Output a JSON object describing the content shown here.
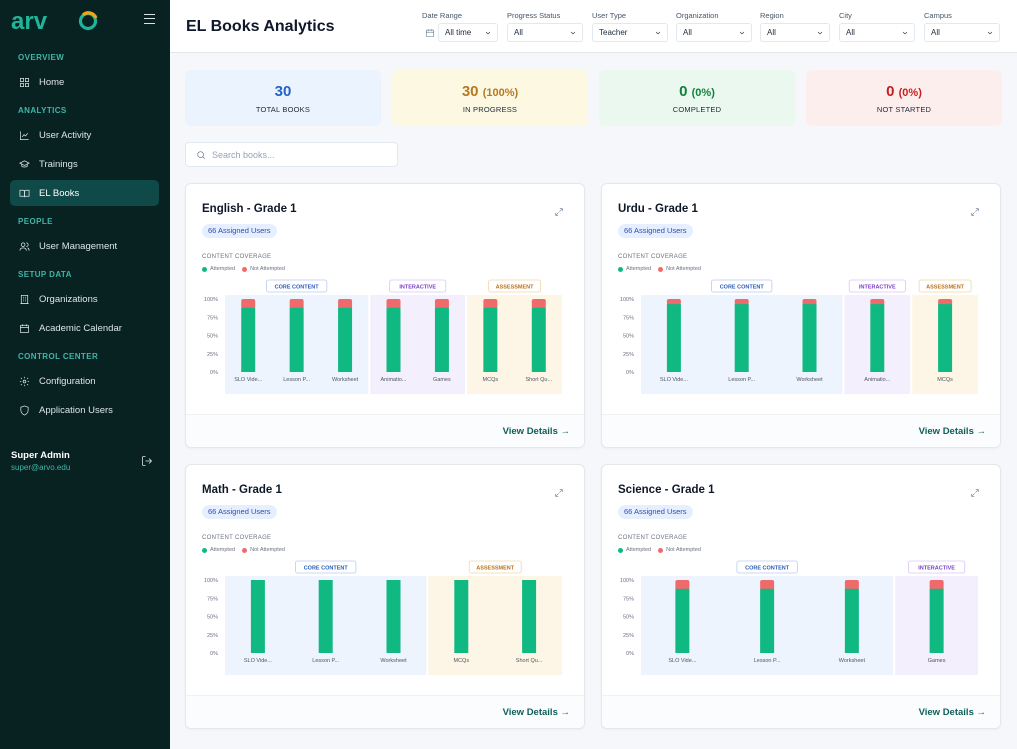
{
  "app": {
    "logo_text": "arvo",
    "brand_colors": {
      "teal": "#1fb59a",
      "orange": "#f4a31a"
    }
  },
  "sidebar": {
    "sections": [
      {
        "title": "OVERVIEW",
        "items": [
          {
            "label": "Home",
            "icon": "grid-icon",
            "active": false
          }
        ]
      },
      {
        "title": "ANALYTICS",
        "items": [
          {
            "label": "User Activity",
            "icon": "activity-icon",
            "active": false
          },
          {
            "label": "Trainings",
            "icon": "graduation-cap-icon",
            "active": false
          },
          {
            "label": "EL Books",
            "icon": "book-open-icon",
            "active": true
          }
        ]
      },
      {
        "title": "PEOPLE",
        "items": [
          {
            "label": "User Management",
            "icon": "users-icon",
            "active": false
          }
        ]
      },
      {
        "title": "SETUP DATA",
        "items": [
          {
            "label": "Organizations",
            "icon": "building-icon",
            "active": false
          },
          {
            "label": "Academic Calendar",
            "icon": "calendar-icon",
            "active": false
          }
        ]
      },
      {
        "title": "CONTROL CENTER",
        "items": [
          {
            "label": "Configuration",
            "icon": "gear-icon",
            "active": false
          },
          {
            "label": "Application Users",
            "icon": "shield-icon",
            "active": false
          }
        ]
      }
    ],
    "user": {
      "name": "Super Admin",
      "email": "super@arvo.edu"
    }
  },
  "header": {
    "title": "EL Books Analytics",
    "filters": [
      {
        "label": "Date Range",
        "value": "All time"
      },
      {
        "label": "Progress Status",
        "value": "All"
      },
      {
        "label": "User Type",
        "value": "Teacher"
      },
      {
        "label": "Organization",
        "value": "All"
      },
      {
        "label": "Region",
        "value": "All"
      },
      {
        "label": "City",
        "value": "All"
      },
      {
        "label": "Campus",
        "value": "All"
      }
    ]
  },
  "stats": [
    {
      "value": "30",
      "pct": "",
      "label": "TOTAL BOOKS",
      "bg": "#eaf3fe",
      "color": "#2463c4"
    },
    {
      "value": "30",
      "pct": "(100%)",
      "label": "IN PROGRESS",
      "bg": "#fdf8e2",
      "color": "#b7791f"
    },
    {
      "value": "0",
      "pct": "(0%)",
      "label": "COMPLETED",
      "bg": "#eaf8ef",
      "color": "#15803d"
    },
    {
      "value": "0",
      "pct": "(0%)",
      "label": "NOT STARTED",
      "bg": "#fdeeee",
      "color": "#c81e1e"
    }
  ],
  "search": {
    "placeholder": "Search books..."
  },
  "colors": {
    "attempted": "#10b981",
    "not_attempted": "#ef6b6b"
  },
  "cards_common": {
    "coverage_label": "CONTENT COVERAGE",
    "legend_attempted": "Attempted",
    "legend_not_attempted": "Not Attempted",
    "view_details": "View Details →",
    "y_ticks": [
      "100%",
      "75%",
      "50%",
      "25%",
      "0%"
    ]
  },
  "books": [
    {
      "title": "English - Grade 1",
      "assigned": "66 Assigned Users",
      "groups": [
        {
          "name": "CORE CONTENT",
          "bg": "#eef4fd",
          "tag_color": "#2b5bb8",
          "tag_border": "#b9cdf2",
          "items": [
            {
              "label": "SLO Vide...",
              "attempted": 88
            },
            {
              "label": "Lesson P...",
              "attempted": 88
            },
            {
              "label": "Worksheet",
              "attempted": 88
            }
          ]
        },
        {
          "name": "INTERACTIVE",
          "bg": "#f4effd",
          "tag_color": "#7a3fc7",
          "tag_border": "#d8c6f2",
          "items": [
            {
              "label": "Animatio...",
              "attempted": 88
            },
            {
              "label": "Games",
              "attempted": 88
            }
          ]
        },
        {
          "name": "ASSESSMENT",
          "bg": "#fdf6e6",
          "tag_color": "#b8731c",
          "tag_border": "#f1d7a8",
          "items": [
            {
              "label": "MCQs",
              "attempted": 88
            },
            {
              "label": "Short Qu...",
              "attempted": 88
            }
          ]
        }
      ]
    },
    {
      "title": "Urdu - Grade 1",
      "assigned": "66 Assigned Users",
      "groups": [
        {
          "name": "CORE CONTENT",
          "bg": "#eef4fd",
          "tag_color": "#2b5bb8",
          "tag_border": "#b9cdf2",
          "items": [
            {
              "label": "SLO Vide...",
              "attempted": 93
            },
            {
              "label": "Lesson P...",
              "attempted": 93
            },
            {
              "label": "Worksheet",
              "attempted": 93
            }
          ]
        },
        {
          "name": "INTERACTIVE",
          "bg": "#f4effd",
          "tag_color": "#7a3fc7",
          "tag_border": "#d8c6f2",
          "items": [
            {
              "label": "Animatio...",
              "attempted": 93
            }
          ]
        },
        {
          "name": "ASSESSMENT",
          "bg": "#fdf6e6",
          "tag_color": "#b8731c",
          "tag_border": "#f1d7a8",
          "items": [
            {
              "label": "MCQs",
              "attempted": 93
            }
          ]
        }
      ]
    },
    {
      "title": "Math - Grade 1",
      "assigned": "66 Assigned Users",
      "groups": [
        {
          "name": "CORE CONTENT",
          "bg": "#eef4fd",
          "tag_color": "#2b5bb8",
          "tag_border": "#b9cdf2",
          "items": [
            {
              "label": "SLO Vide...",
              "attempted": 100
            },
            {
              "label": "Lesson P...",
              "attempted": 100
            },
            {
              "label": "Worksheet",
              "attempted": 100
            }
          ]
        },
        {
          "name": "ASSESSMENT",
          "bg": "#fdf6e6",
          "tag_color": "#b8731c",
          "tag_border": "#f1d7a8",
          "items": [
            {
              "label": "MCQs",
              "attempted": 100
            },
            {
              "label": "Short Qu...",
              "attempted": 100
            }
          ]
        }
      ]
    },
    {
      "title": "Science - Grade 1",
      "assigned": "66 Assigned Users",
      "groups": [
        {
          "name": "CORE CONTENT",
          "bg": "#eef4fd",
          "tag_color": "#2b5bb8",
          "tag_border": "#b9cdf2",
          "items": [
            {
              "label": "SLO Vide...",
              "attempted": 88
            },
            {
              "label": "Lesson P...",
              "attempted": 88
            },
            {
              "label": "Worksheet",
              "attempted": 88
            }
          ]
        },
        {
          "name": "INTERACTIVE",
          "bg": "#f4effd",
          "tag_color": "#7a3fc7",
          "tag_border": "#d8c6f2",
          "items": [
            {
              "label": "Games",
              "attempted": 88
            }
          ]
        }
      ]
    }
  ]
}
